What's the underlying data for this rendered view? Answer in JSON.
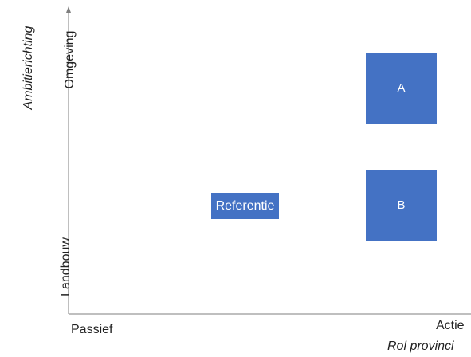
{
  "colors": {
    "accent": "#4472c4",
    "axis": "#7f7f7f"
  },
  "axes": {
    "y_title": "Ambitierichting",
    "y_top": "Omgeving",
    "y_bottom": "Landbouw",
    "x_left": "Passief",
    "x_right": "Actie",
    "x_title": "Rol provinci"
  },
  "boxes": {
    "a": "A",
    "b": "B",
    "reference": "Referentie"
  }
}
